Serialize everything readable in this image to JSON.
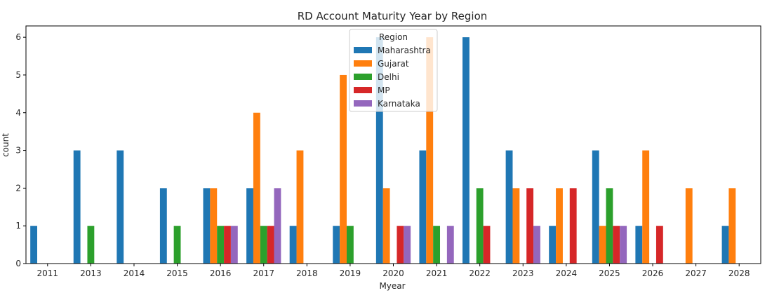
{
  "chart_data": {
    "type": "bar",
    "title": "RD Account Maturity Year by Region",
    "xlabel": "Myear",
    "ylabel": "count",
    "ylim": [
      0,
      6.3
    ],
    "yticks": [
      0,
      1,
      2,
      3,
      4,
      5,
      6
    ],
    "categories": [
      "2011",
      "2013",
      "2014",
      "2015",
      "2016",
      "2017",
      "2018",
      "2019",
      "2020",
      "2021",
      "2022",
      "2023",
      "2024",
      "2025",
      "2026",
      "2027",
      "2028"
    ],
    "legend": {
      "title": "Region",
      "placement": "top-center"
    },
    "series": [
      {
        "name": "Maharashtra",
        "color": "#1f77b4",
        "values": [
          1,
          3,
          3,
          2,
          2,
          2,
          1,
          1,
          6,
          3,
          6,
          3,
          1,
          3,
          1,
          0,
          1
        ]
      },
      {
        "name": "Gujarat",
        "color": "#ff7f0e",
        "values": [
          0,
          0,
          0,
          0,
          2,
          4,
          3,
          5,
          2,
          6,
          0,
          2,
          2,
          1,
          3,
          2,
          2
        ]
      },
      {
        "name": "Delhi",
        "color": "#2ca02c",
        "values": [
          0,
          1,
          0,
          1,
          1,
          1,
          0,
          1,
          0,
          1,
          2,
          0,
          0,
          2,
          0,
          0,
          0
        ]
      },
      {
        "name": "MP",
        "color": "#d62728",
        "values": [
          0,
          0,
          0,
          0,
          1,
          1,
          0,
          0,
          1,
          0,
          1,
          2,
          2,
          1,
          1,
          0,
          0
        ]
      },
      {
        "name": "Karnataka",
        "color": "#9467bd",
        "values": [
          0,
          0,
          0,
          0,
          1,
          2,
          0,
          0,
          1,
          1,
          0,
          1,
          0,
          1,
          0,
          0,
          0
        ]
      }
    ]
  }
}
